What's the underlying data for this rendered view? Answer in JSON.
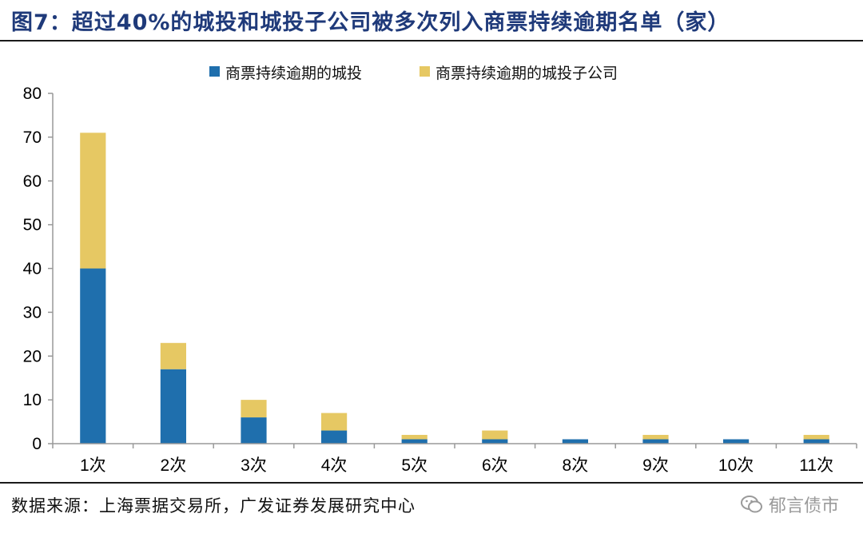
{
  "title": "图7：超过40%的城投和城投子公司被多次列入商票持续逾期名单（家）",
  "source": "数据来源：上海票据交易所，广发证券发展研究中心",
  "watermark": "郁言债市",
  "colors": {
    "series1": "#1f6fad",
    "series2": "#e6c863",
    "title": "#1f3a7a",
    "axis": "#999999"
  },
  "chart_data": {
    "type": "bar",
    "stacked": true,
    "categories": [
      "1次",
      "2次",
      "3次",
      "4次",
      "5次",
      "6次",
      "8次",
      "9次",
      "10次",
      "11次"
    ],
    "series": [
      {
        "name": "商票持续逾期的城投",
        "values": [
          40,
          17,
          6,
          3,
          1,
          1,
          1,
          1,
          1,
          1
        ]
      },
      {
        "name": "商票持续逾期的城投子公司",
        "values": [
          31,
          6,
          4,
          4,
          1,
          2,
          0,
          1,
          0,
          1
        ]
      }
    ],
    "ylim": [
      0,
      80
    ],
    "yticks": [
      0,
      10,
      20,
      30,
      40,
      50,
      60,
      70,
      80
    ],
    "legend": "top-center",
    "grid": false
  }
}
